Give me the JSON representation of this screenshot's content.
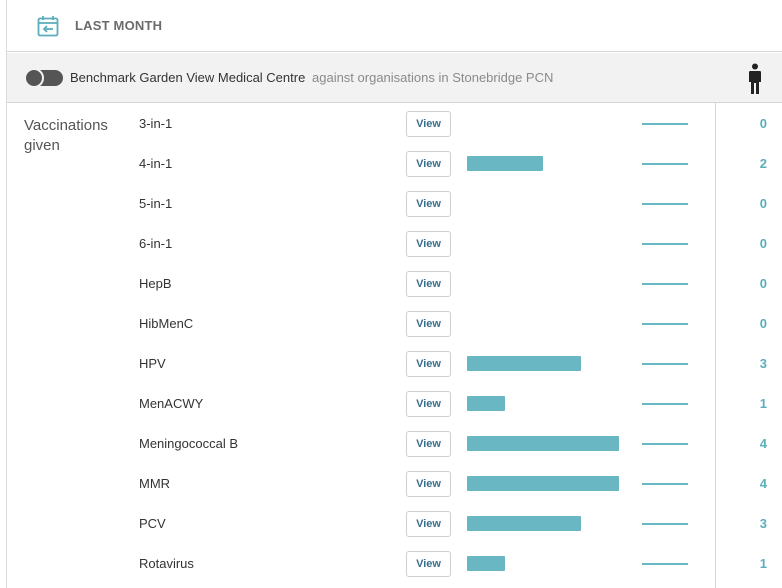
{
  "period": {
    "label": "LAST MONTH"
  },
  "benchmark": {
    "practice": "Benchmark Garden View Medical Centre",
    "comparison": "against organisations in Stonebridge PCN",
    "toggle_on": false
  },
  "icons": {
    "calendar": "calendar-back-icon",
    "person": "person-icon"
  },
  "colors": {
    "accent": "#68b7c3",
    "count": "#5aaebb",
    "button_text": "#3a6f8f"
  },
  "section": {
    "title": "Vaccinations given"
  },
  "max_count": 4,
  "rows": [
    {
      "label": "3-in-1",
      "button": "View",
      "count": "0",
      "value": 0
    },
    {
      "label": "4-in-1",
      "button": "View",
      "count": "2",
      "value": 2
    },
    {
      "label": "5-in-1",
      "button": "View",
      "count": "0",
      "value": 0
    },
    {
      "label": "6-in-1",
      "button": "View",
      "count": "0",
      "value": 0
    },
    {
      "label": "HepB",
      "button": "View",
      "count": "0",
      "value": 0
    },
    {
      "label": "HibMenC",
      "button": "View",
      "count": "0",
      "value": 0
    },
    {
      "label": "HPV",
      "button": "View",
      "count": "3",
      "value": 3
    },
    {
      "label": "MenACWY",
      "button": "View",
      "count": "1",
      "value": 1
    },
    {
      "label": "Meningococcal B",
      "button": "View",
      "count": "4",
      "value": 4
    },
    {
      "label": "MMR",
      "button": "View",
      "count": "4",
      "value": 4
    },
    {
      "label": "PCV",
      "button": "View",
      "count": "3",
      "value": 3
    },
    {
      "label": "Rotavirus",
      "button": "View",
      "count": "1",
      "value": 1
    }
  ]
}
